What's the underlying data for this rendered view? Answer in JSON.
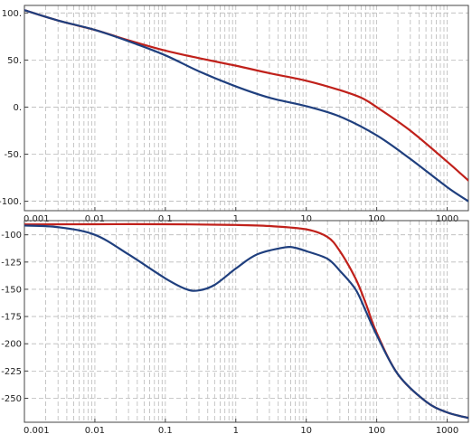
{
  "chart_data": [
    {
      "type": "line",
      "title": "",
      "xlabel": "",
      "ylabel": "",
      "x_scale": "log",
      "xlim": [
        0.001,
        2000
      ],
      "ylim": [
        -110,
        108
      ],
      "grid": true,
      "x_ticks": [
        {
          "value": 0.001,
          "label": "0.001"
        },
        {
          "value": 0.01,
          "label": "0.01"
        },
        {
          "value": 0.1,
          "label": "0.1"
        },
        {
          "value": 1,
          "label": "1"
        },
        {
          "value": 10,
          "label": "10"
        },
        {
          "value": 100,
          "label": "100"
        },
        {
          "value": 1000,
          "label": "1000"
        }
      ],
      "y_ticks": [
        {
          "value": 100,
          "label": "100."
        },
        {
          "value": 50,
          "label": "50."
        },
        {
          "value": 0,
          "label": "0."
        },
        {
          "value": -50,
          "label": "-50."
        },
        {
          "value": -100,
          "label": "-100."
        }
      ],
      "series": [
        {
          "color": "#c0211b",
          "points": [
            [
              0.001,
              103
            ],
            [
              0.003,
              92
            ],
            [
              0.01,
              82
            ],
            [
              0.03,
              71
            ],
            [
              0.1,
              60
            ],
            [
              0.3,
              52
            ],
            [
              1,
              44
            ],
            [
              3,
              36
            ],
            [
              10,
              28
            ],
            [
              30,
              18
            ],
            [
              60,
              10
            ],
            [
              100,
              0
            ],
            [
              300,
              -25
            ],
            [
              1000,
              -58
            ],
            [
              2000,
              -78
            ]
          ]
        },
        {
          "color": "#1f3f7e",
          "points": [
            [
              0.001,
              103
            ],
            [
              0.003,
              92
            ],
            [
              0.01,
              82
            ],
            [
              0.03,
              70
            ],
            [
              0.1,
              55
            ],
            [
              0.3,
              38
            ],
            [
              1,
              22
            ],
            [
              3,
              10
            ],
            [
              10,
              1
            ],
            [
              30,
              -10
            ],
            [
              100,
              -30
            ],
            [
              300,
              -55
            ],
            [
              1000,
              -85
            ],
            [
              2000,
              -100
            ]
          ]
        }
      ]
    },
    {
      "type": "line",
      "title": "",
      "xlabel": "",
      "ylabel": "",
      "x_scale": "log",
      "xlim": [
        0.001,
        2000
      ],
      "ylim": [
        -272,
        -87
      ],
      "grid": true,
      "x_ticks": [
        {
          "value": 0.001,
          "label": "0.001"
        },
        {
          "value": 0.01,
          "label": "0.01"
        },
        {
          "value": 0.1,
          "label": "0.1"
        },
        {
          "value": 1,
          "label": "1"
        },
        {
          "value": 10,
          "label": "10"
        },
        {
          "value": 100,
          "label": "100"
        },
        {
          "value": 1000,
          "label": "1000"
        }
      ],
      "y_ticks": [
        {
          "value": -100,
          "label": "-100"
        },
        {
          "value": -125,
          "label": "-125"
        },
        {
          "value": -150,
          "label": "-150"
        },
        {
          "value": -175,
          "label": "-175"
        },
        {
          "value": -200,
          "label": "-200"
        },
        {
          "value": -225,
          "label": "-225"
        },
        {
          "value": -250,
          "label": "-250"
        }
      ],
      "series": [
        {
          "color": "#c0211b",
          "points": [
            [
              0.001,
              -90.5
            ],
            [
              0.01,
              -90.3
            ],
            [
              0.1,
              -90.3
            ],
            [
              1,
              -91
            ],
            [
              3,
              -92
            ],
            [
              10,
              -95
            ],
            [
              20,
              -102
            ],
            [
              30,
              -115
            ],
            [
              50,
              -140
            ],
            [
              70,
              -163
            ],
            [
              100,
              -190
            ],
            [
              200,
              -228
            ],
            [
              500,
              -253
            ],
            [
              1000,
              -263
            ],
            [
              2000,
              -268
            ]
          ]
        },
        {
          "color": "#1f3f7e",
          "points": [
            [
              0.001,
              -91.5
            ],
            [
              0.003,
              -93
            ],
            [
              0.01,
              -100
            ],
            [
              0.03,
              -118
            ],
            [
              0.1,
              -140
            ],
            [
              0.2,
              -150
            ],
            [
              0.3,
              -151
            ],
            [
              0.5,
              -146
            ],
            [
              1,
              -131
            ],
            [
              2,
              -118
            ],
            [
              5,
              -111.5
            ],
            [
              7,
              -112
            ],
            [
              10,
              -115
            ],
            [
              20,
              -122
            ],
            [
              30,
              -133
            ],
            [
              50,
              -150
            ],
            [
              70,
              -170
            ],
            [
              100,
              -192
            ],
            [
              200,
              -228
            ],
            [
              500,
              -253
            ],
            [
              1000,
              -263
            ],
            [
              2000,
              -268
            ]
          ]
        }
      ]
    }
  ]
}
